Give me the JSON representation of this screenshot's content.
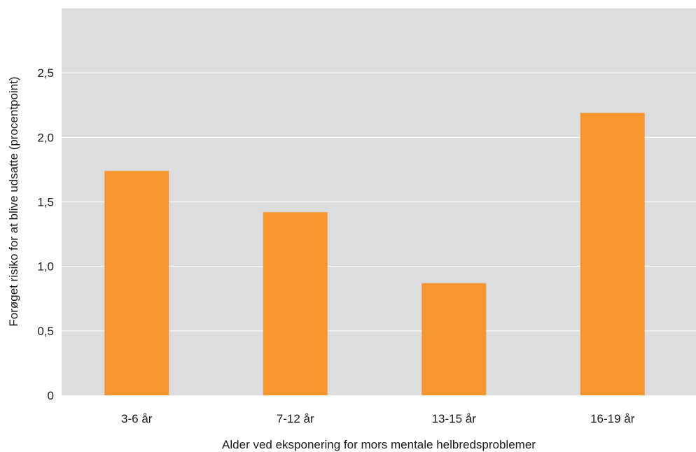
{
  "chart_data": {
    "type": "bar",
    "title": "",
    "xlabel": "Alder ved eksponering for mors mentale helbredsproblemer",
    "ylabel": "Forøget risiko for at blive udsatte (procentpoint)",
    "categories": [
      "3-6 år",
      "7-12 år",
      "13-15 år",
      "16-19 år"
    ],
    "values": [
      1.74,
      1.42,
      0.87,
      2.19
    ],
    "ylim": [
      0,
      3.0
    ],
    "yticks": [
      0,
      0.5,
      1.0,
      1.5,
      2.0,
      2.5
    ],
    "ytick_labels": [
      "0",
      "0,5",
      "1,0",
      "1,5",
      "2,0",
      "2,5"
    ],
    "grid": true,
    "legend": "none",
    "colors": {
      "bar": "#F7962F",
      "plot_background": "#DCDDDF",
      "gridline": "#FFFFFF"
    }
  }
}
